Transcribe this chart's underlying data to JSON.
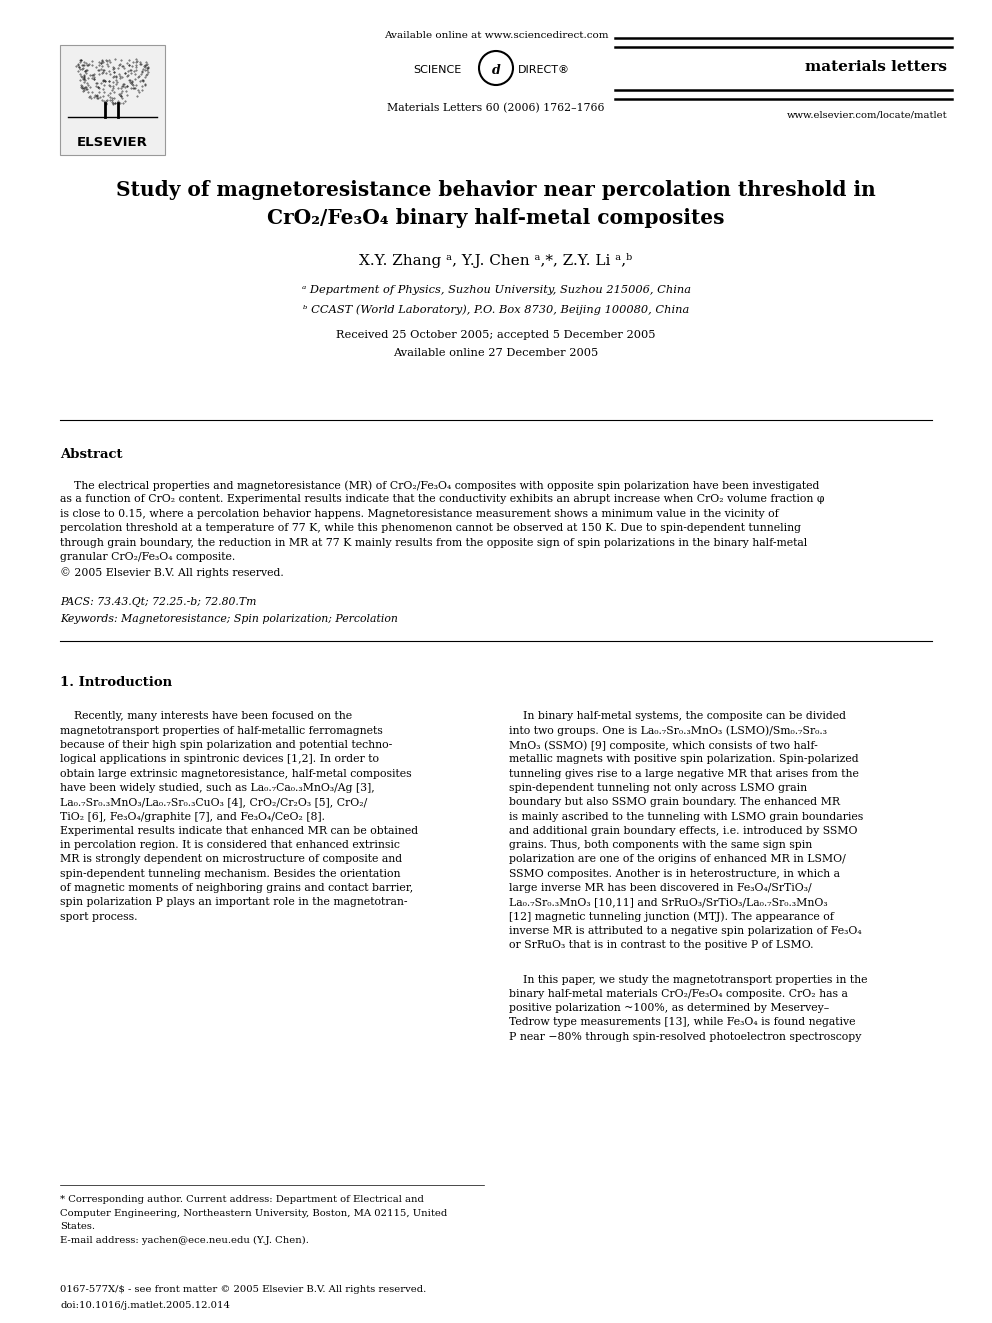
{
  "page_width": 9.92,
  "page_height": 13.23,
  "background_color": "#ffffff",
  "header": {
    "available_online": "Available online at www.sciencedirect.com",
    "journal_name": "materials letters",
    "journal_info": "Materials Letters 60 (2006) 1762–1766",
    "website": "www.elsevier.com/locate/matlet"
  },
  "title_line1": "Study of magnetoresistance behavior near percolation threshold in",
  "title_line2": "CrO₂/Fe₃O₄ binary half-metal composites",
  "authors_display": "X.Y. Zhang ᵃ, Y.J. Chen ᵃ,*, Z.Y. Li ᵃ,ᵇ",
  "affil_a": "ᵃ Department of Physics, Suzhou University, Suzhou 215006, China",
  "affil_b": "ᵇ CCAST (World Laboratory), P.O. Box 8730, Beijing 100080, China",
  "received": "Received 25 October 2005; accepted 5 December 2005",
  "available": "Available online 27 December 2005",
  "abstract_title": "Abstract",
  "pacs": "PACS: 73.43.Qt; 72.25.-b; 72.80.Tm",
  "keywords": "Keywords: Magnetoresistance; Spin polarization; Percolation",
  "section1_title": "1. Introduction",
  "footer_bottom1": "0167-577X/$ - see front matter © 2005 Elsevier B.V. All rights reserved.",
  "footer_bottom2": "doi:10.1016/j.matlet.2005.12.014"
}
